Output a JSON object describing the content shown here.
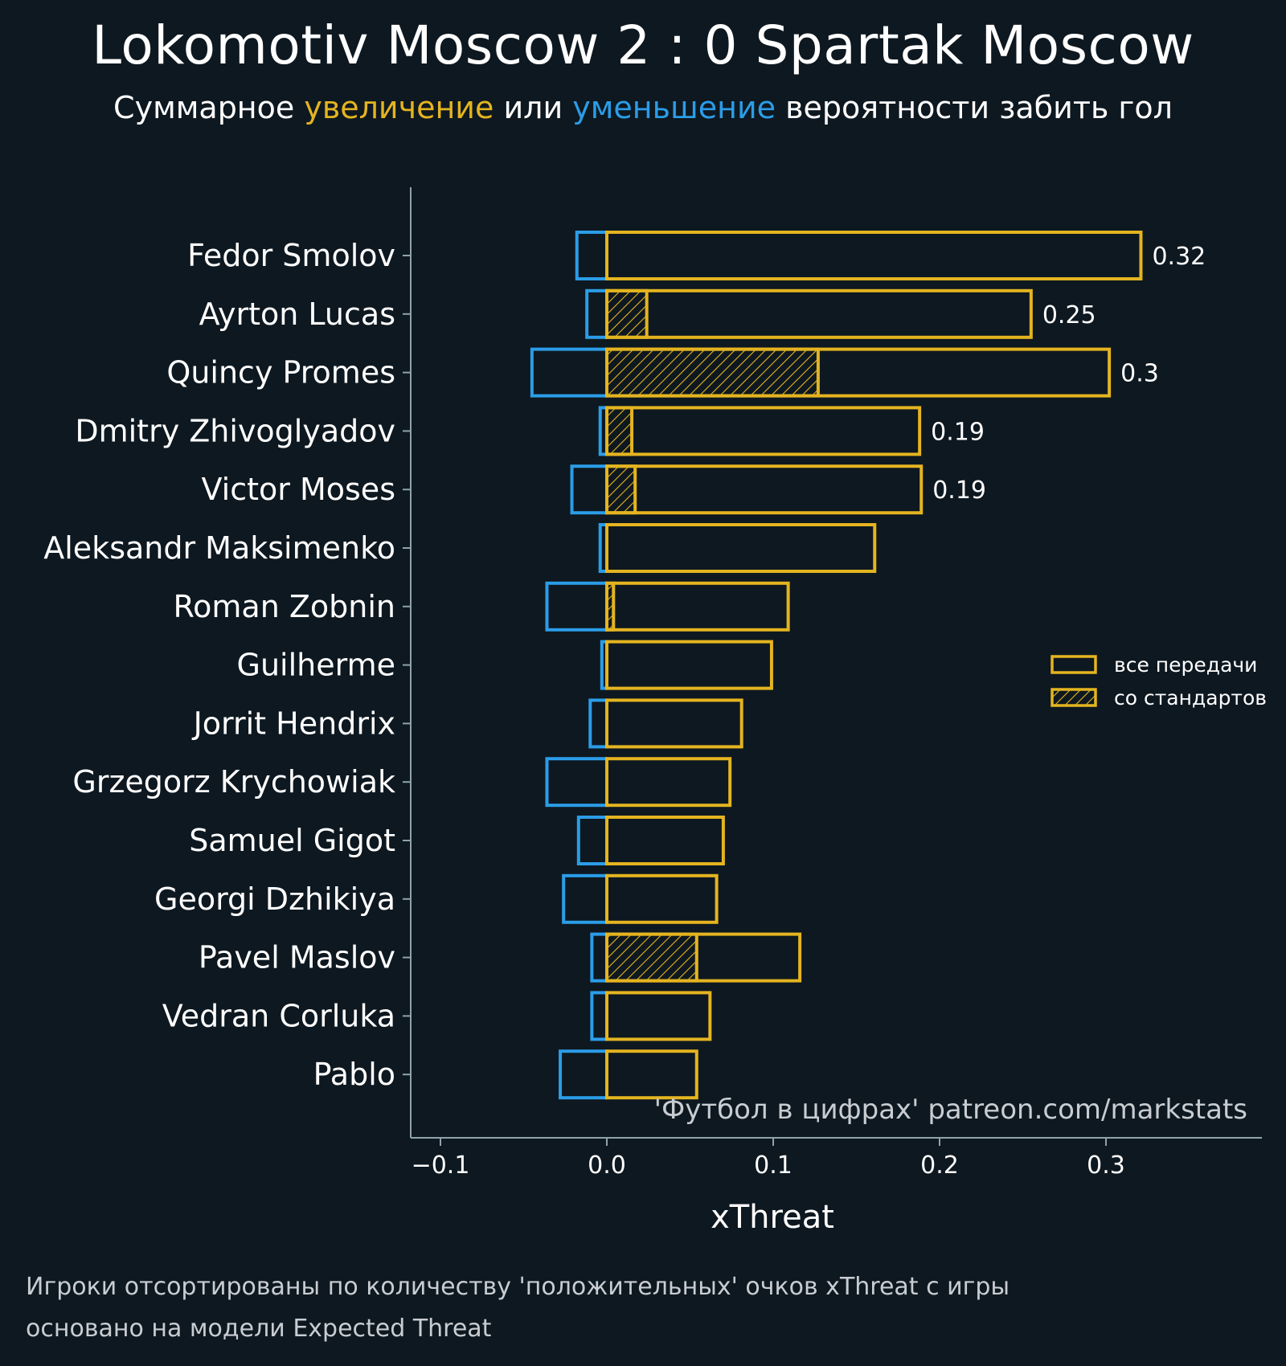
{
  "title": "Lokomotiv Moscow 2 : 0 Spartak Moscow",
  "subtitle": {
    "prefix": "Суммарное ",
    "increase": "увеличение",
    "middle": " или ",
    "decrease": "уменьшение",
    "suffix": " вероятности забить гол"
  },
  "watermark": "'Футбол в цифрах' patreon.com/markstats",
  "footnotes": [
    "Игроки отсортированы по количеству 'положительных' очков xThreat с игры",
    "основано на модели Expected Threat"
  ],
  "colors": {
    "background": "#0e1820",
    "positive": "#e4b420",
    "negative": "#2b9de8",
    "axis": "#8fa3ad"
  },
  "chart_data": {
    "type": "bar",
    "orientation": "horizontal",
    "xlabel": "xThreat",
    "xlim": [
      -0.12,
      0.39
    ],
    "xticks": [
      -0.1,
      0.0,
      0.1,
      0.2,
      0.3
    ],
    "xtick_labels": [
      "−0.1",
      "0.0",
      "0.1",
      "0.2",
      "0.3"
    ],
    "legend": {
      "placement": "right",
      "entries": [
        {
          "label": "все передачи",
          "hatched": false
        },
        {
          "label": "со стандартов",
          "hatched": true
        }
      ]
    },
    "players": [
      {
        "name": "Fedor Smolov",
        "negative": -0.018,
        "positive": 0.321,
        "set_piece": 0.0,
        "label": "0.32"
      },
      {
        "name": "Ayrton Lucas",
        "negative": -0.012,
        "positive": 0.255,
        "set_piece": 0.024,
        "label": "0.25"
      },
      {
        "name": "Quincy Promes",
        "negative": -0.045,
        "positive": 0.302,
        "set_piece": 0.127,
        "label": "0.3"
      },
      {
        "name": "Dmitry Zhivoglyadov",
        "negative": -0.004,
        "positive": 0.188,
        "set_piece": 0.015,
        "label": "0.19"
      },
      {
        "name": "Victor Moses",
        "negative": -0.021,
        "positive": 0.189,
        "set_piece": 0.017,
        "label": "0.19"
      },
      {
        "name": "Aleksandr Maksimenko",
        "negative": -0.004,
        "positive": 0.161,
        "set_piece": 0.0,
        "label": ""
      },
      {
        "name": "Roman Zobnin",
        "negative": -0.036,
        "positive": 0.109,
        "set_piece": 0.004,
        "label": ""
      },
      {
        "name": "Guilherme",
        "negative": -0.003,
        "positive": 0.099,
        "set_piece": 0.0,
        "label": ""
      },
      {
        "name": "Jorrit Hendrix",
        "negative": -0.01,
        "positive": 0.081,
        "set_piece": 0.0,
        "label": ""
      },
      {
        "name": "Grzegorz Krychowiak",
        "negative": -0.036,
        "positive": 0.074,
        "set_piece": 0.0,
        "label": ""
      },
      {
        "name": "Samuel Gigot",
        "negative": -0.017,
        "positive": 0.07,
        "set_piece": 0.0,
        "label": ""
      },
      {
        "name": "Georgi Dzhikiya",
        "negative": -0.026,
        "positive": 0.066,
        "set_piece": 0.0,
        "label": ""
      },
      {
        "name": "Pavel Maslov",
        "negative": -0.009,
        "positive": 0.116,
        "set_piece": 0.054,
        "label": ""
      },
      {
        "name": "Vedran Corluka",
        "negative": -0.009,
        "positive": 0.062,
        "set_piece": 0.0,
        "label": ""
      },
      {
        "name": "Pablo",
        "negative": -0.028,
        "positive": 0.054,
        "set_piece": 0.0,
        "label": ""
      }
    ]
  }
}
